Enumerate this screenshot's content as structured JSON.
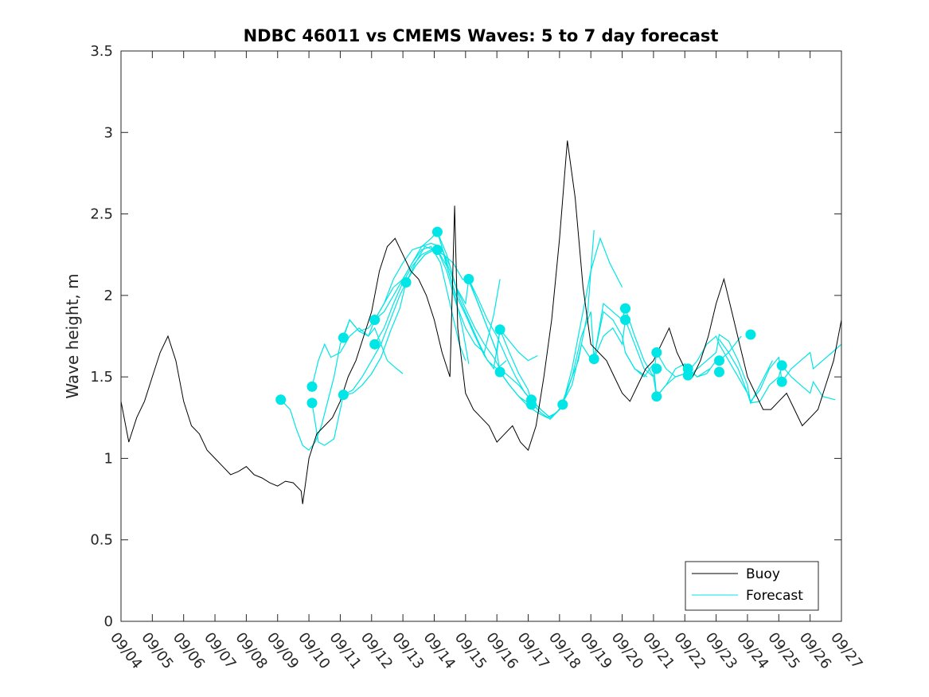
{
  "chart_data": {
    "type": "line",
    "title": "NDBC 46011 vs CMEMS Waves: 5 to 7 day forecast",
    "xlabel": "",
    "ylabel": "Wave height, m",
    "xlim": [
      0,
      23
    ],
    "ylim": [
      0,
      3.5
    ],
    "x_tick_labels": [
      "09/04",
      "09/05",
      "09/06",
      "09/07",
      "09/08",
      "09/09",
      "09/10",
      "09/11",
      "09/12",
      "09/13",
      "09/14",
      "09/15",
      "09/16",
      "09/17",
      "09/18",
      "09/19",
      "09/20",
      "09/21",
      "09/22",
      "09/23",
      "09/24",
      "09/25",
      "09/26",
      "09/27"
    ],
    "y_tick_labels": [
      "0",
      "0.5",
      "1",
      "1.5",
      "2",
      "2.5",
      "3",
      "3.5"
    ],
    "y_ticks": [
      0,
      0.5,
      1,
      1.5,
      2,
      2.5,
      3,
      3.5
    ],
    "colors": {
      "buoy": "#000000",
      "forecast": "#00e5e5",
      "axes": "#262626"
    },
    "legend": {
      "position": "bottom-right",
      "entries": [
        "Buoy",
        "Forecast"
      ]
    },
    "buoy_series": {
      "name": "Buoy",
      "x": [
        0,
        0.25,
        0.5,
        0.75,
        1,
        1.25,
        1.5,
        1.75,
        2,
        2.25,
        2.5,
        2.75,
        3,
        3.25,
        3.5,
        3.75,
        4,
        4.25,
        4.5,
        4.75,
        5,
        5.25,
        5.5,
        5.75,
        5.8,
        6,
        6.25,
        6.5,
        6.75,
        7,
        7.25,
        7.5,
        7.75,
        8,
        8.25,
        8.5,
        8.75,
        9,
        9.25,
        9.5,
        9.75,
        10,
        10.25,
        10.5,
        10.65,
        10.75,
        11,
        11.25,
        11.5,
        11.75,
        12,
        12.25,
        12.5,
        12.75,
        13,
        13.25,
        13.5,
        13.75,
        14,
        14.25,
        14.5,
        14.75,
        15,
        15.25,
        15.5,
        15.75,
        16,
        16.25,
        16.5,
        16.75,
        17,
        17.25,
        17.5,
        17.75,
        18,
        18.25,
        18.5,
        18.75,
        19,
        19.25,
        19.5,
        19.75,
        20,
        20.25,
        20.5,
        20.75,
        21,
        21.25,
        21.5,
        21.75,
        22,
        22.25,
        22.5,
        22.75,
        23
      ],
      "y": [
        1.35,
        1.1,
        1.25,
        1.35,
        1.5,
        1.65,
        1.75,
        1.6,
        1.35,
        1.2,
        1.15,
        1.05,
        1.0,
        0.95,
        0.9,
        0.92,
        0.95,
        0.9,
        0.88,
        0.85,
        0.83,
        0.86,
        0.85,
        0.8,
        0.72,
        1.0,
        1.15,
        1.2,
        1.25,
        1.35,
        1.5,
        1.6,
        1.75,
        1.9,
        2.15,
        2.3,
        2.35,
        2.25,
        2.15,
        2.1,
        2.0,
        1.85,
        1.65,
        1.5,
        2.55,
        1.8,
        1.4,
        1.3,
        1.25,
        1.2,
        1.1,
        1.15,
        1.2,
        1.1,
        1.05,
        1.2,
        1.5,
        1.85,
        2.35,
        2.95,
        2.6,
        2.05,
        1.7,
        1.65,
        1.6,
        1.5,
        1.4,
        1.35,
        1.45,
        1.55,
        1.6,
        1.7,
        1.8,
        1.65,
        1.55,
        1.5,
        1.6,
        1.75,
        1.95,
        2.1,
        1.9,
        1.7,
        1.5,
        1.4,
        1.3,
        1.3,
        1.35,
        1.4,
        1.3,
        1.2,
        1.25,
        1.3,
        1.45,
        1.6,
        1.85
      ]
    },
    "forecast_series": [
      {
        "name": "Forecast",
        "x": [
          5.1,
          5.4,
          5.6,
          5.8,
          6.0,
          6.2,
          6.4,
          6.6,
          6.8,
          7.0,
          7.3,
          7.6,
          7.9,
          8.1,
          8.3,
          8.5,
          8.8,
          9.0
        ],
        "y": [
          1.36,
          1.3,
          1.18,
          1.08,
          1.05,
          1.1,
          1.2,
          1.35,
          1.5,
          1.7,
          1.85,
          1.78,
          1.75,
          1.8,
          1.7,
          1.6,
          1.55,
          1.52
        ]
      },
      {
        "name": "Forecast",
        "x": [
          6.1,
          6.3,
          6.5,
          6.7,
          7.0,
          7.3,
          7.6,
          7.9,
          8.1,
          8.4,
          8.7,
          9.0,
          9.3,
          9.6,
          9.9,
          10.2,
          10.5,
          10.8,
          11.0
        ],
        "y": [
          1.44,
          1.6,
          1.7,
          1.62,
          1.65,
          1.75,
          1.8,
          1.75,
          1.85,
          1.95,
          2.05,
          2.1,
          2.2,
          2.28,
          2.3,
          2.2,
          1.95,
          1.7,
          1.6
        ]
      },
      {
        "name": "Forecast",
        "x": [
          6.1,
          6.3,
          6.5,
          6.8,
          7.1,
          7.4,
          7.7,
          8.0,
          8.3,
          8.6,
          8.9,
          9.1,
          9.4,
          9.7,
          10.0,
          10.3,
          10.6,
          10.9,
          11.1
        ],
        "y": [
          1.34,
          1.1,
          1.08,
          1.12,
          1.39,
          1.42,
          1.5,
          1.6,
          1.7,
          1.85,
          2.0,
          2.08,
          2.2,
          2.3,
          2.28,
          2.25,
          2.05,
          1.8,
          1.58
        ]
      },
      {
        "name": "Forecast",
        "x": [
          7.1,
          7.4,
          7.7,
          8.0,
          8.3,
          8.6,
          8.9,
          9.1,
          9.4,
          9.7,
          10.0,
          10.1,
          10.4,
          10.7,
          11.0,
          11.3,
          11.6,
          11.9,
          12.1
        ],
        "y": [
          1.39,
          1.4,
          1.45,
          1.52,
          1.62,
          1.78,
          1.92,
          2.08,
          2.18,
          2.25,
          2.28,
          2.28,
          2.15,
          1.95,
          1.8,
          1.7,
          1.65,
          1.88,
          2.1
        ]
      },
      {
        "name": "Forecast",
        "x": [
          7.1,
          7.3,
          7.6,
          7.9,
          8.1,
          8.4,
          8.7,
          9.0,
          9.3,
          9.6,
          9.9,
          10.2,
          10.5,
          10.8,
          11.1,
          11.4,
          11.7,
          12.0,
          12.3
        ],
        "y": [
          1.74,
          1.85,
          1.78,
          1.8,
          1.85,
          1.95,
          2.1,
          2.2,
          2.28,
          2.3,
          2.32,
          2.3,
          2.18,
          1.98,
          1.85,
          1.72,
          1.6,
          1.55,
          1.6
        ]
      },
      {
        "name": "Forecast",
        "x": [
          8.1,
          8.4,
          8.7,
          9.0,
          9.3,
          9.6,
          9.9,
          10.1,
          10.4,
          10.7,
          11.0,
          11.3,
          11.6,
          11.9,
          12.1,
          12.4,
          12.7,
          13.0,
          13.3
        ],
        "y": [
          1.85,
          1.9,
          2.0,
          2.1,
          2.2,
          2.3,
          2.35,
          2.39,
          2.25,
          2.05,
          1.92,
          1.8,
          1.7,
          1.62,
          1.55,
          1.5,
          1.45,
          1.38,
          1.3
        ]
      },
      {
        "name": "Forecast",
        "x": [
          8.1,
          8.4,
          8.7,
          9.0,
          9.3,
          9.6,
          9.9,
          10.1,
          10.4,
          10.7,
          11.0,
          11.3,
          11.6,
          11.9,
          12.1,
          12.4,
          12.7,
          13.0,
          13.3
        ],
        "y": [
          1.7,
          1.8,
          1.95,
          2.08,
          2.18,
          2.25,
          2.28,
          2.28,
          2.18,
          2.0,
          1.88,
          1.75,
          1.63,
          1.55,
          1.79,
          1.72,
          1.65,
          1.6,
          1.63
        ]
      },
      {
        "name": "Forecast",
        "x": [
          9.1,
          9.4,
          9.7,
          10.0,
          10.3,
          10.6,
          10.9,
          11.1,
          11.4,
          11.7,
          12.0,
          12.1,
          12.4,
          12.7,
          13.0,
          13.3,
          13.6,
          13.9,
          14.1
        ],
        "y": [
          2.08,
          2.18,
          2.25,
          2.28,
          2.25,
          2.2,
          2.1,
          2.09,
          1.95,
          1.8,
          1.65,
          1.53,
          1.45,
          1.38,
          1.32,
          1.28,
          1.25,
          1.28,
          1.33
        ]
      },
      {
        "name": "Forecast",
        "x": [
          10.1,
          10.4,
          10.7,
          11.0,
          11.1,
          11.4,
          11.7,
          12.0,
          12.3,
          12.6,
          12.9,
          13.1,
          13.4,
          13.7,
          14.0,
          14.3,
          14.6,
          14.9,
          15.1
        ],
        "y": [
          2.39,
          2.2,
          2.05,
          1.95,
          2.1,
          1.98,
          1.85,
          1.75,
          1.62,
          1.5,
          1.4,
          1.36,
          1.3,
          1.25,
          1.3,
          1.45,
          1.6,
          1.9,
          2.4
        ]
      },
      {
        "name": "Forecast",
        "x": [
          11.1,
          11.4,
          11.7,
          12.0,
          12.1,
          12.4,
          12.7,
          13.0,
          13.1,
          13.4,
          13.7,
          14.0,
          14.1,
          14.4,
          14.7,
          15.0,
          15.3,
          15.6,
          16.0
        ],
        "y": [
          2.1,
          1.95,
          1.8,
          1.65,
          1.79,
          1.65,
          1.52,
          1.42,
          1.34,
          1.28,
          1.24,
          1.3,
          1.33,
          1.55,
          1.85,
          2.15,
          2.35,
          2.2,
          2.05
        ]
      },
      {
        "name": "Forecast",
        "x": [
          12.1,
          12.4,
          12.7,
          13.0,
          13.1,
          13.4,
          13.7,
          14.0,
          14.1,
          14.4,
          14.7,
          15.0,
          15.1,
          15.4,
          15.7,
          16.0,
          16.1,
          16.4,
          16.8
        ],
        "y": [
          1.53,
          1.45,
          1.38,
          1.34,
          1.36,
          1.3,
          1.25,
          1.3,
          1.34,
          1.45,
          1.7,
          1.61,
          1.62,
          1.9,
          1.85,
          1.75,
          1.65,
          1.55,
          1.5
        ]
      },
      {
        "name": "Forecast",
        "x": [
          14.1,
          14.4,
          14.7,
          15.0,
          15.1,
          15.4,
          15.7,
          16.0,
          16.1,
          16.4,
          16.7,
          17.0,
          17.1,
          17.4,
          17.7,
          18.0,
          18.1,
          18.4,
          18.8
        ],
        "y": [
          1.33,
          1.5,
          1.75,
          1.9,
          1.61,
          1.95,
          1.9,
          1.85,
          1.92,
          1.75,
          1.6,
          1.5,
          1.38,
          1.45,
          1.55,
          1.58,
          1.55,
          1.5,
          1.55
        ]
      },
      {
        "name": "Forecast",
        "x": [
          15.1,
          15.4,
          15.7,
          16.0,
          16.1,
          16.4,
          16.7,
          17.0,
          17.1,
          17.4,
          17.7,
          18.0,
          18.1,
          18.4,
          18.7,
          19.0,
          19.1,
          19.4,
          19.8
        ],
        "y": [
          1.61,
          1.75,
          1.8,
          1.7,
          1.85,
          1.7,
          1.55,
          1.5,
          1.65,
          1.55,
          1.5,
          1.52,
          1.55,
          1.5,
          1.52,
          1.6,
          1.6,
          1.65,
          1.75
        ]
      },
      {
        "name": "Forecast",
        "x": [
          16.1,
          16.4,
          16.7,
          17.0,
          17.1,
          17.4,
          17.7,
          18.0,
          18.1,
          18.4,
          18.7,
          19.0,
          19.1,
          19.4,
          19.7,
          20.0,
          20.1,
          20.4,
          20.8
        ],
        "y": [
          1.65,
          1.55,
          1.5,
          1.58,
          1.38,
          1.45,
          1.5,
          1.52,
          1.5,
          1.55,
          1.6,
          1.65,
          1.76,
          1.72,
          1.6,
          1.45,
          1.34,
          1.45,
          1.6
        ]
      },
      {
        "name": "Forecast",
        "x": [
          18.1,
          18.4,
          18.7,
          19.0,
          19.1,
          19.4,
          19.7,
          20.0,
          20.1,
          20.4,
          20.7,
          21.0,
          21.1,
          21.4,
          21.7,
          22.0,
          22.1,
          22.4,
          22.8
        ],
        "y": [
          1.53,
          1.6,
          1.7,
          1.75,
          1.7,
          1.6,
          1.5,
          1.4,
          1.34,
          1.35,
          1.45,
          1.5,
          1.57,
          1.5,
          1.45,
          1.4,
          1.47,
          1.38,
          1.36
        ]
      },
      {
        "name": "Forecast",
        "x": [
          19.1,
          19.4,
          19.7,
          20.0,
          20.1,
          20.4,
          20.7,
          21.0,
          21.1,
          21.4,
          21.7,
          22.0,
          22.1,
          22.4,
          22.7,
          23.0
        ],
        "y": [
          1.73,
          1.65,
          1.55,
          1.4,
          1.35,
          1.42,
          1.55,
          1.62,
          1.47,
          1.55,
          1.6,
          1.65,
          1.55,
          1.6,
          1.65,
          1.7
        ]
      }
    ],
    "forecast_points": {
      "name": "Forecast",
      "x": [
        5.1,
        6.1,
        6.1,
        7.1,
        7.1,
        8.1,
        8.1,
        9.1,
        10.1,
        10.1,
        11.1,
        12.1,
        12.1,
        13.1,
        13.1,
        14.1,
        15.1,
        16.1,
        16.1,
        17.1,
        17.1,
        18.1,
        18.1,
        19.1,
        19.1,
        20.1,
        21.1,
        21.1,
        17.1,
        16.1
      ],
      "y": [
        1.36,
        1.44,
        1.34,
        1.74,
        1.39,
        1.85,
        1.7,
        2.08,
        2.39,
        2.28,
        2.1,
        1.79,
        1.53,
        1.36,
        1.33,
        1.33,
        1.61,
        1.92,
        1.85,
        1.65,
        1.38,
        1.55,
        1.51,
        1.6,
        1.53,
        1.76,
        1.57,
        1.47,
        1.55,
        1.92
      ]
    }
  }
}
